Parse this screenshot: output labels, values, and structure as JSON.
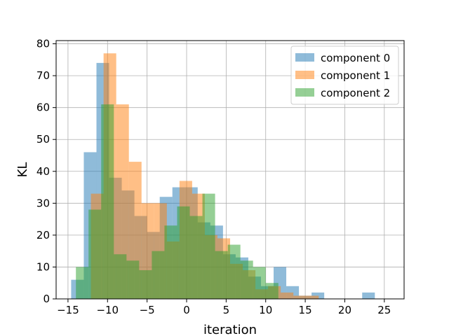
{
  "chart_data": {
    "type": "bar",
    "xlabel": "iteration",
    "ylabel": "KL",
    "xlim": [
      -16.5,
      27.5
    ],
    "ylim": [
      0,
      81
    ],
    "xticks": [
      -15,
      -10,
      -5,
      0,
      5,
      10,
      15,
      20,
      25
    ],
    "xtick_labels": [
      "−15",
      "−10",
      "−5",
      "0",
      "5",
      "10",
      "15",
      "20",
      "25"
    ],
    "yticks": [
      0,
      10,
      20,
      30,
      40,
      50,
      60,
      70,
      80
    ],
    "ytick_labels": [
      "0",
      "10",
      "20",
      "30",
      "40",
      "50",
      "60",
      "70",
      "80"
    ],
    "grid": true,
    "legend_position": "top-right",
    "bar_alpha": 0.5,
    "series": [
      {
        "name": "component 0",
        "color": "#1f77b4",
        "bin_start": -14.6,
        "bin_width": 1.6,
        "values": [
          6,
          46,
          74,
          38,
          34,
          26,
          21,
          32,
          35,
          35,
          24,
          23,
          14,
          13,
          7,
          4,
          10,
          4,
          1,
          2,
          0,
          0,
          0,
          2
        ]
      },
      {
        "name": "component 1",
        "color": "#ff7f0e",
        "bin_start": -13.7,
        "bin_width": 1.6,
        "values": [
          0,
          33,
          77,
          61,
          43,
          30,
          30,
          18,
          37,
          33,
          20,
          19,
          11,
          9,
          3,
          4,
          2,
          1,
          1,
          0,
          0,
          0,
          0,
          0
        ]
      },
      {
        "name": "component 2",
        "color": "#2ca02c",
        "bin_start": -14.0,
        "bin_width": 1.6,
        "values": [
          10,
          28,
          61,
          14,
          12,
          9,
          15,
          23,
          29,
          26,
          33,
          15,
          17,
          12,
          10,
          5,
          0,
          0,
          0,
          0,
          0,
          0,
          0,
          0
        ]
      }
    ]
  }
}
